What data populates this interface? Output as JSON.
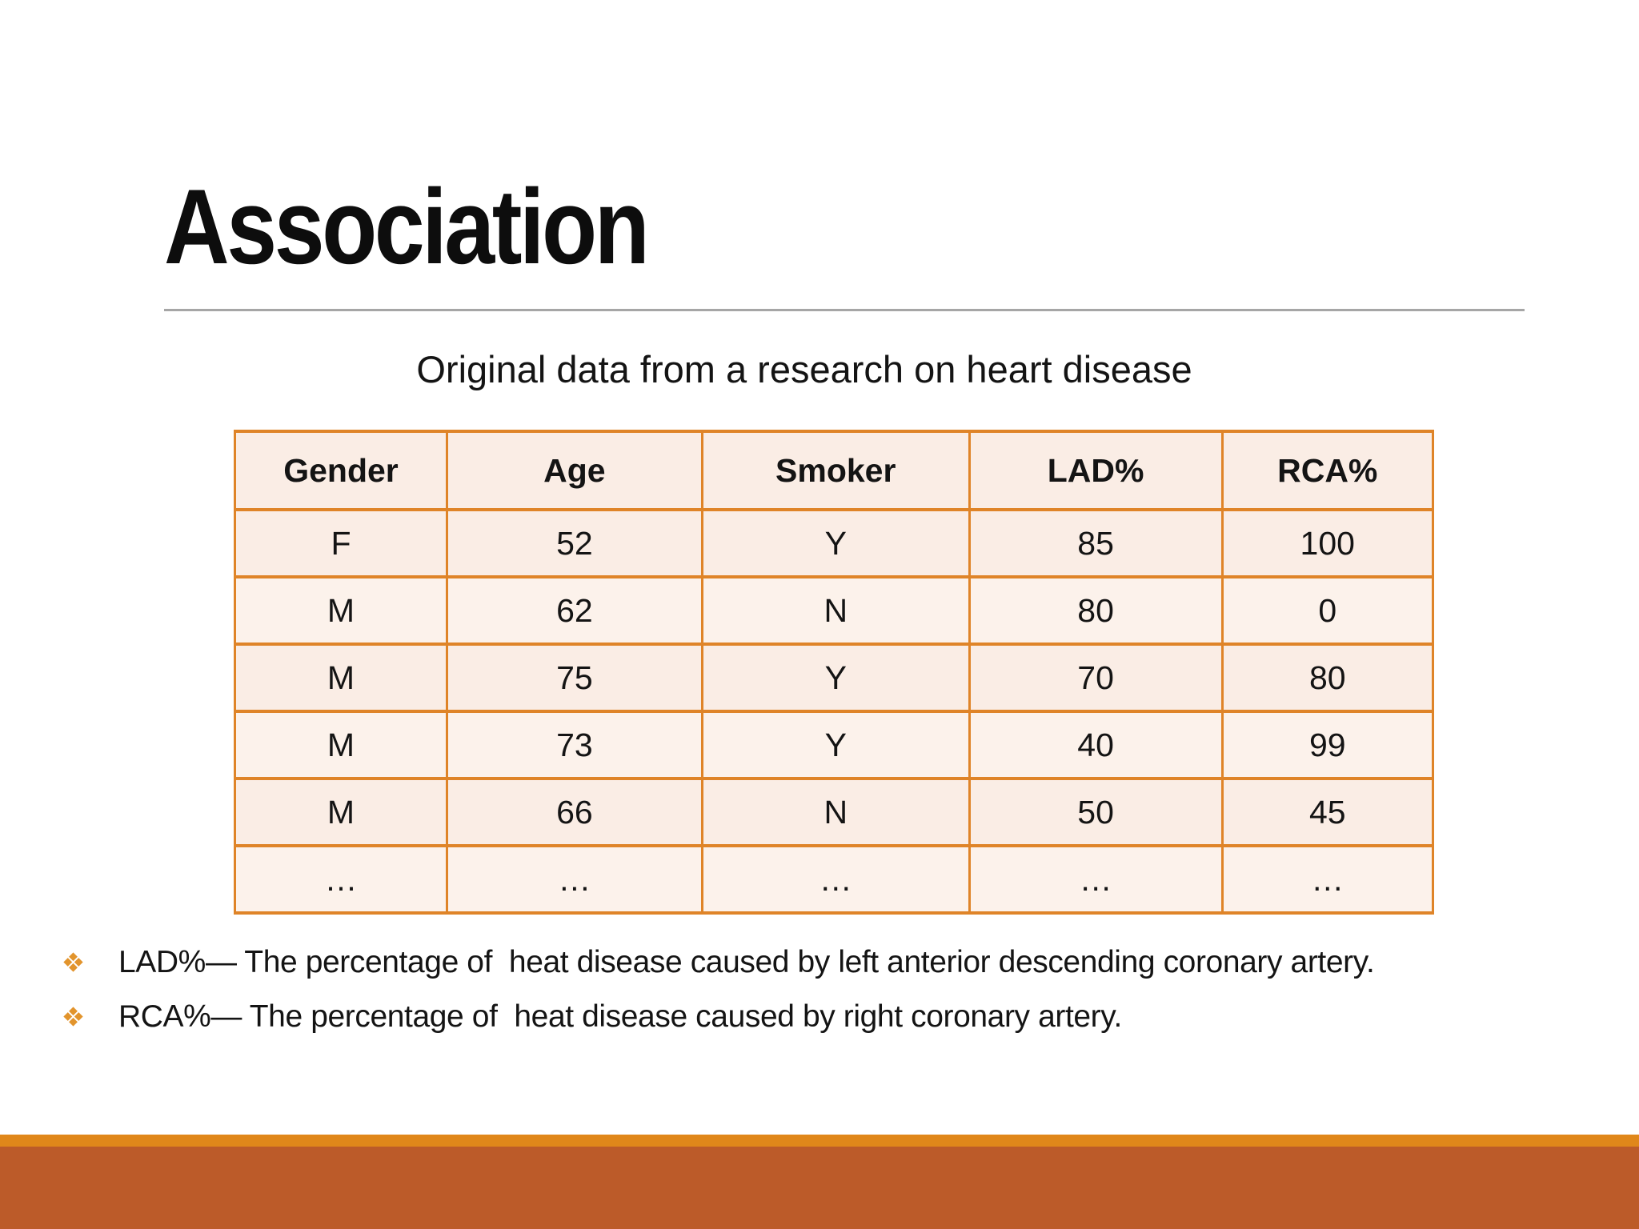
{
  "slide_title": "Association",
  "table_caption": "Original data from a research on heart disease",
  "table": {
    "headers": [
      "Gender",
      "Age",
      "Smoker",
      "LAD%",
      "RCA%"
    ],
    "rows": [
      [
        "F",
        "52",
        "Y",
        "85",
        "100"
      ],
      [
        "M",
        "62",
        "N",
        "80",
        "0"
      ],
      [
        "M",
        "75",
        "Y",
        "70",
        "80"
      ],
      [
        "M",
        "73",
        "Y",
        "40",
        "99"
      ],
      [
        "M",
        "66",
        "N",
        "50",
        "45"
      ],
      [
        "…",
        "…",
        "…",
        "…",
        "…"
      ]
    ]
  },
  "bullets": {
    "lad": "LAD%— The percentage of  heat disease caused by left anterior descending coronary artery.",
    "rca": "RCA%— The percentage of  heat disease caused by right coronary artery."
  },
  "colors": {
    "table_border": "#DF8428",
    "cell_fill_dark": "#FAEDE5",
    "cell_fill_light": "#FCF2EB",
    "bullet_marker": "#E2942C",
    "footer_stripe": "#E0871A",
    "footer_band": "#BC5B29",
    "title_divider": "#A6A6A6",
    "text": "#141414"
  }
}
